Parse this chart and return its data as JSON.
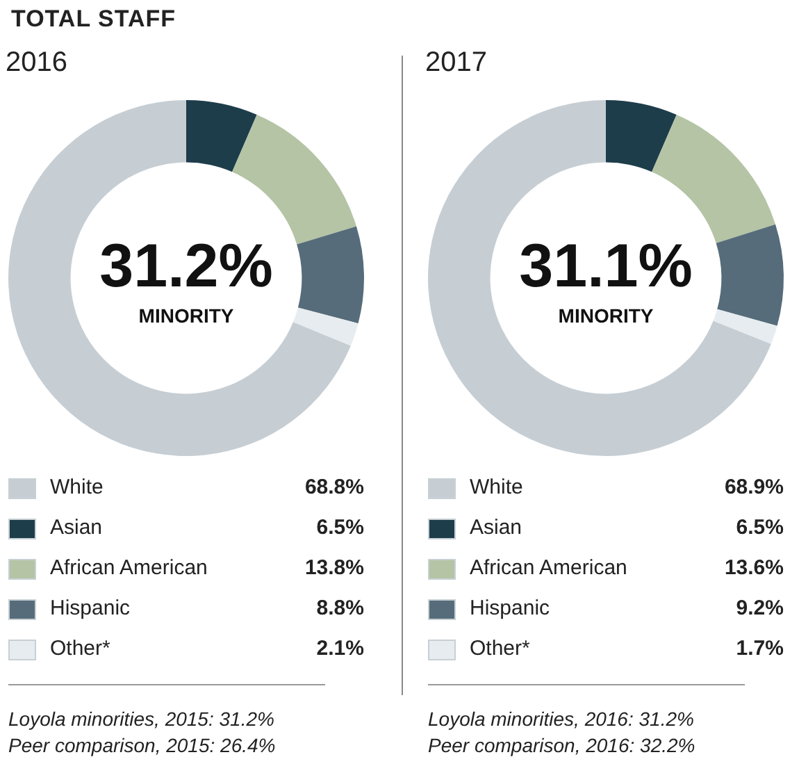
{
  "chart_data": [
    {
      "type": "donut",
      "title": "TOTAL STAFF",
      "subtitle": "2016",
      "categories": [
        "White",
        "Asian",
        "African American",
        "Hispanic",
        "Other*"
      ],
      "values": [
        68.8,
        6.5,
        13.8,
        8.8,
        2.1
      ],
      "value_labels": [
        "68.8%",
        "6.5%",
        "13.8%",
        "8.8%",
        "2.1%"
      ],
      "colors": [
        "#c6ced4",
        "#1e3d4b",
        "#b4c4a5",
        "#566c7a",
        "#e6ecef"
      ],
      "legend": "bottom",
      "annotations": [
        "31.2%",
        "MINORITY",
        "Loyola minorities, 2015: 31.2%",
        "Peer comparison, 2015: 26.4%"
      ]
    },
    {
      "type": "donut",
      "subtitle": "2017",
      "categories": [
        "White",
        "Asian",
        "African American",
        "Hispanic",
        "Other*"
      ],
      "values": [
        68.9,
        6.5,
        13.6,
        9.2,
        1.7
      ],
      "value_labels": [
        "68.9%",
        "6.5%",
        "13.6%",
        "9.2%",
        "1.7%"
      ],
      "colors": [
        "#c6ced4",
        "#1e3d4b",
        "#b4c4a5",
        "#566c7a",
        "#e6ecef"
      ],
      "legend": "bottom",
      "annotations": [
        "31.1%",
        "MINORITY",
        "Loyola minorities, 2016: 31.2%",
        "Peer comparison, 2016: 32.2%"
      ]
    }
  ]
}
